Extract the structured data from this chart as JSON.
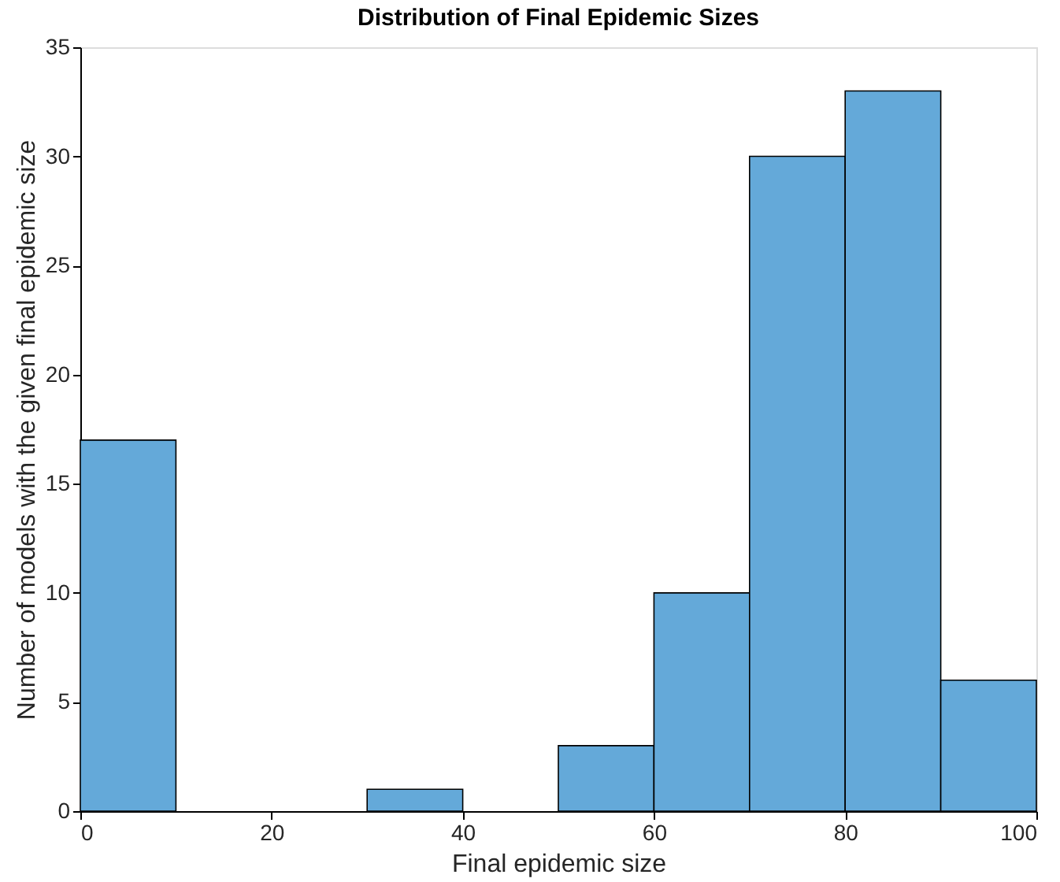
{
  "chart_data": {
    "type": "histogram",
    "title": "Distribution of Final Epidemic Sizes",
    "xlabel": "Final epidemic size",
    "ylabel": "Number of models with the given final epidemic size",
    "bins": [
      0,
      10,
      20,
      30,
      40,
      50,
      60,
      70,
      80,
      90,
      100
    ],
    "values": [
      17,
      0,
      0,
      1,
      0,
      3,
      10,
      30,
      33,
      6
    ],
    "color": "#64a9d9",
    "xlim": [
      0,
      100
    ],
    "xticks": [
      0,
      20,
      40,
      60,
      80,
      100
    ],
    "ylim": [
      0,
      35
    ],
    "yticks": [
      0,
      5,
      10,
      15,
      20,
      25,
      30,
      35
    ],
    "grid": false
  }
}
